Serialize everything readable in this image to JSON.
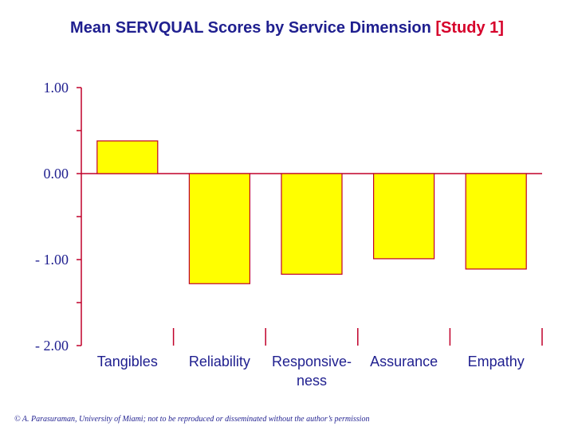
{
  "title": {
    "main": "Mean SERVQUAL Scores by Service Dimension ",
    "bracket": "[Study 1]"
  },
  "chart_data": {
    "type": "bar",
    "categories": [
      [
        "Tangibles"
      ],
      [
        "Reliability"
      ],
      [
        "Responsive-",
        "ness"
      ],
      [
        "Assurance"
      ],
      [
        "Empathy"
      ]
    ],
    "values": [
      0.38,
      -1.28,
      -1.17,
      -0.99,
      -1.11
    ],
    "ylim": [
      -2,
      1
    ],
    "yticks": [
      1,
      0,
      -1,
      -2
    ],
    "ytick_labels": [
      "1.00",
      "0.00",
      "- 1.00",
      "- 2.00"
    ],
    "xlabel": "",
    "ylabel": "",
    "grid": false,
    "colors": {
      "bar_fill": "#ffff00",
      "bar_stroke": "#c0002a",
      "axis": "#c0002a",
      "text": "#1f1f8f",
      "accent": "#d6002a"
    }
  },
  "footer": "© A. Parasuraman, University of Miami; not to be reproduced or disseminated without the author’s permission"
}
